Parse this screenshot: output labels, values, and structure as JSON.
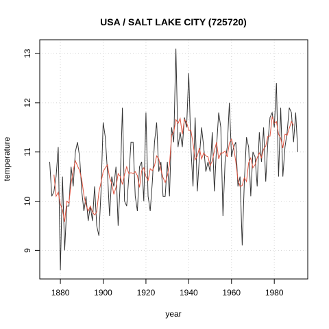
{
  "chart_data": {
    "type": "line",
    "title": "USA / SALT LAKE CITY (725720)",
    "xlabel": "year",
    "ylabel": "temperature",
    "x": [
      1875,
      1876,
      1877,
      1878,
      1879,
      1880,
      1881,
      1882,
      1883,
      1884,
      1885,
      1886,
      1887,
      1888,
      1889,
      1890,
      1891,
      1892,
      1893,
      1894,
      1895,
      1896,
      1897,
      1898,
      1899,
      1900,
      1901,
      1902,
      1903,
      1904,
      1905,
      1906,
      1907,
      1908,
      1909,
      1910,
      1911,
      1912,
      1913,
      1914,
      1915,
      1916,
      1917,
      1918,
      1919,
      1920,
      1921,
      1922,
      1923,
      1924,
      1925,
      1926,
      1927,
      1928,
      1929,
      1930,
      1931,
      1932,
      1933,
      1934,
      1935,
      1936,
      1937,
      1938,
      1939,
      1940,
      1941,
      1942,
      1943,
      1944,
      1945,
      1946,
      1947,
      1948,
      1949,
      1950,
      1951,
      1952,
      1953,
      1954,
      1955,
      1956,
      1957,
      1958,
      1959,
      1960,
      1961,
      1962,
      1963,
      1964,
      1965,
      1966,
      1967,
      1968,
      1969,
      1970,
      1971,
      1972,
      1973,
      1974,
      1975,
      1976,
      1977,
      1978,
      1979,
      1980,
      1981,
      1982,
      1983,
      1984,
      1985,
      1986,
      1987,
      1988,
      1989,
      1990,
      1991
    ],
    "series": [
      {
        "color": "#333333",
        "values": [
          10.8,
          10.1,
          10.2,
          10.5,
          11.1,
          8.6,
          10.5,
          9.0,
          9.9,
          9.9,
          10.7,
          10.3,
          11.0,
          11.2,
          10.9,
          10.2,
          9.8,
          10.1,
          9.6,
          9.9,
          9.6,
          10.3,
          9.5,
          9.3,
          10.2,
          11.6,
          11.3,
          10.6,
          9.7,
          10.5,
          10.3,
          10.7,
          9.5,
          10.4,
          11.9,
          10.0,
          9.9,
          10.5,
          11.2,
          11.2,
          10.1,
          9.8,
          10.7,
          10.8,
          10.0,
          11.8,
          10.1,
          9.8,
          10.4,
          11.2,
          11.6,
          10.6,
          10.8,
          10.1,
          10.1,
          10.8,
          10.1,
          11.5,
          11.2,
          13.1,
          11.1,
          11.4,
          11.1,
          11.7,
          11.5,
          12.6,
          11.1,
          10.3,
          11.7,
          10.2,
          10.9,
          11.5,
          11.1,
          10.6,
          10.8,
          10.6,
          11.4,
          10.2,
          11.1,
          11.8,
          11.5,
          9.7,
          10.8,
          11.1,
          12.0,
          10.9,
          11.1,
          11.2,
          10.3,
          10.5,
          9.1,
          10.4,
          11.3,
          11.1,
          10.1,
          11.0,
          10.9,
          10.3,
          11.4,
          10.8,
          11.5,
          10.4,
          11.2,
          11.7,
          11.8,
          11.5,
          12.4,
          10.5,
          11.9,
          10.5,
          11.1,
          11.4,
          11.9,
          11.8,
          11.2,
          11.8,
          11.0
        ]
      },
      {
        "color": "#e0533f",
        "values": [
          null,
          null,
          10.54,
          10.1,
          10.18,
          9.94,
          9.82,
          9.58,
          10.0,
          9.96,
          10.36,
          10.62,
          10.82,
          10.72,
          10.62,
          10.44,
          10.12,
          9.92,
          9.8,
          9.9,
          9.78,
          9.72,
          9.78,
          10.18,
          10.38,
          10.6,
          10.68,
          10.74,
          10.48,
          10.36,
          10.14,
          10.28,
          10.56,
          10.5,
          10.34,
          10.54,
          10.7,
          10.56,
          10.58,
          10.56,
          10.6,
          10.52,
          10.28,
          10.62,
          10.68,
          10.5,
          10.42,
          10.66,
          10.62,
          10.72,
          10.92,
          10.86,
          10.64,
          10.48,
          10.38,
          10.52,
          10.74,
          11.34,
          11.4,
          11.66,
          11.58,
          11.68,
          11.36,
          11.66,
          11.6,
          11.44,
          11.44,
          11.18,
          10.84,
          10.92,
          11.08,
          10.86,
          10.98,
          10.92,
          10.9,
          10.72,
          10.82,
          11.02,
          11.2,
          10.86,
          10.98,
          10.98,
          11.02,
          10.9,
          11.18,
          11.26,
          11.1,
          10.8,
          10.44,
          10.3,
          10.32,
          10.48,
          10.4,
          10.78,
          10.88,
          10.68,
          10.74,
          10.88,
          10.98,
          10.88,
          11.06,
          11.12,
          11.32,
          11.32,
          11.72,
          11.58,
          11.62,
          11.36,
          11.28,
          11.08,
          11.36,
          11.34,
          11.48,
          11.62,
          11.54,
          null,
          null
        ]
      }
    ],
    "xlim": [
      1870.36,
      1995.64
    ],
    "ylim": [
      8.42,
      13.28
    ],
    "xticks": [
      1880,
      1900,
      1920,
      1940,
      1960,
      1980
    ],
    "yticks": [
      9,
      10,
      11,
      12,
      13
    ],
    "grid": true
  }
}
